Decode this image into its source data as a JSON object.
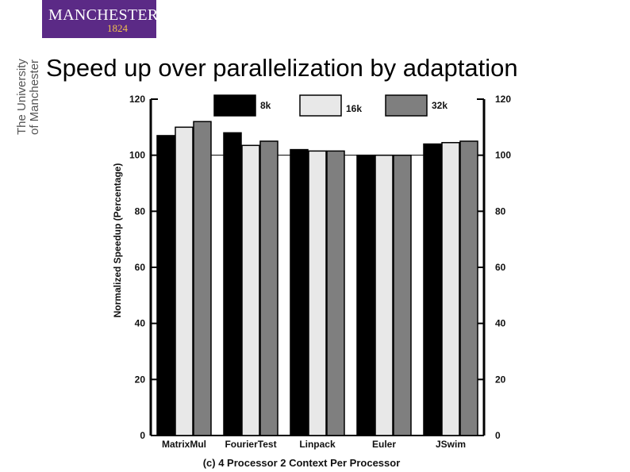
{
  "logo": {
    "name": "MANCHESTER",
    "year": "1824"
  },
  "sidebar": {
    "line1": "The University",
    "line2": "of Manchester"
  },
  "title": "Speed up over parallelization by adaptation",
  "chart_data": {
    "type": "bar",
    "categories": [
      "MatrixMul",
      "FourierTest",
      "Linpack",
      "Euler",
      "JSwim"
    ],
    "series": [
      {
        "name": "8k",
        "values": [
          107,
          108,
          102,
          100,
          104
        ],
        "color": "#000000"
      },
      {
        "name": "16k",
        "values": [
          110,
          103.5,
          101.5,
          100,
          104.5
        ],
        "color": "#e8e8e8"
      },
      {
        "name": "32k",
        "values": [
          112,
          105,
          101.5,
          100,
          105
        ],
        "color": "#7f7f7f"
      }
    ],
    "ylabel": "Normalized Speedup (Percentage)",
    "caption": "(c) 4 Processor 2 Context Per Processor",
    "ylim": [
      0,
      120
    ],
    "yticks": [
      0,
      20,
      40,
      60,
      80,
      100,
      120
    ],
    "reference_line": 100,
    "legend_position": "top"
  }
}
